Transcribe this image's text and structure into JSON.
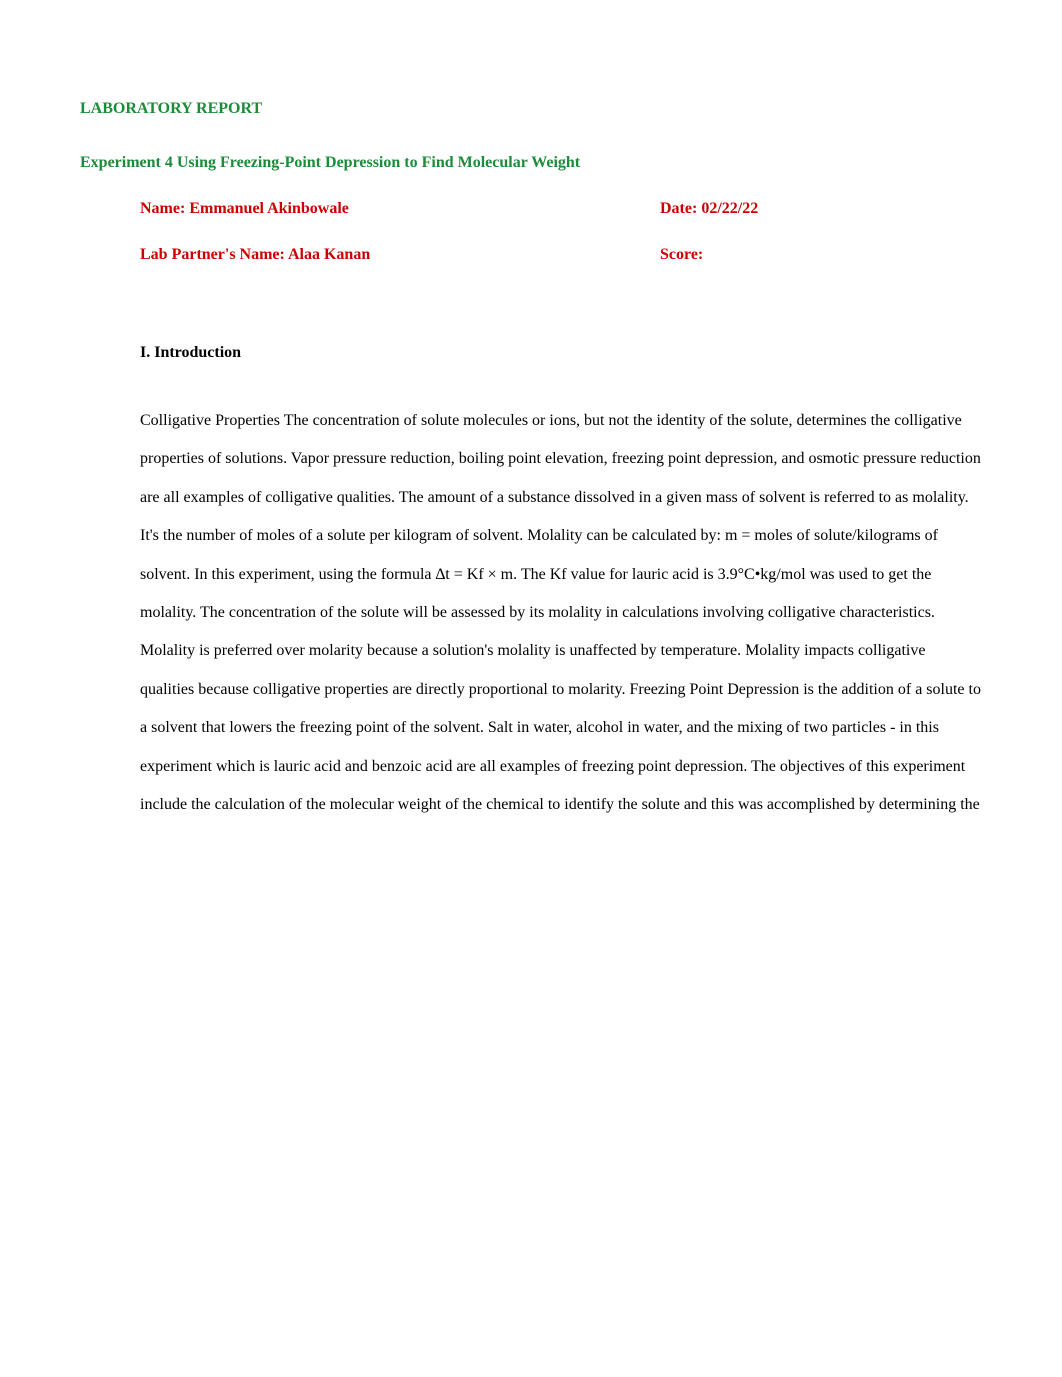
{
  "header": {
    "report_title": "LABORATORY REPORT",
    "experiment_title": "Experiment 4    Using Freezing-Point Depression to Find Molecular Weight",
    "name_label": "Name:  Emmanuel Akinbowale",
    "date_label": "Date: 02/22/22",
    "partner_label": "Lab Partner's Name:  Alaa Kanan",
    "score_label": "Score:"
  },
  "section": {
    "introduction_heading": "I. Introduction",
    "introduction_body": "Colligative Properties The concentration of solute molecules or ions, but not the identity of the solute, determines the colligative properties of solutions. Vapor pressure reduction, boiling point elevation, freezing point depression, and osmotic pressure reduction are all examples of colligative qualities. The amount of a substance dissolved in a given mass of solvent is referred to as molality. It's the number of moles of a solute per kilogram of solvent. Molality can be calculated by:  m = moles of solute/kilograms of solvent. In this experiment,   using the formula ∆t = Kf × m. The Kf value for lauric acid is 3.9°C•kg/mol was used to get the molality. The concentration of the solute will be assessed by its molality in calculations involving colligative characteristics. Molality is preferred over molarity because a solution's molality is unaffected by temperature. Molality impacts colligative qualities because colligative properties are directly proportional to molarity. Freezing Point Depression is the addition of a solute to a solvent that lowers the freezing point of the solvent. Salt in water, alcohol in water, and the mixing of two particles - in this experiment which is lauric acid and benzoic acid are all examples of freezing point depression. The objectives of this experiment include the calculation of the molecular weight of the chemical to identify the solute and this was accomplished by determining the"
  },
  "colors": {
    "title_color": "#1a8c3a",
    "info_color": "#cc0000",
    "body_color": "#000000",
    "background": "#ffffff"
  },
  "typography": {
    "font_family": "Times New Roman",
    "title_fontsize": 16,
    "body_fontsize": 16,
    "line_height": 2.4
  }
}
